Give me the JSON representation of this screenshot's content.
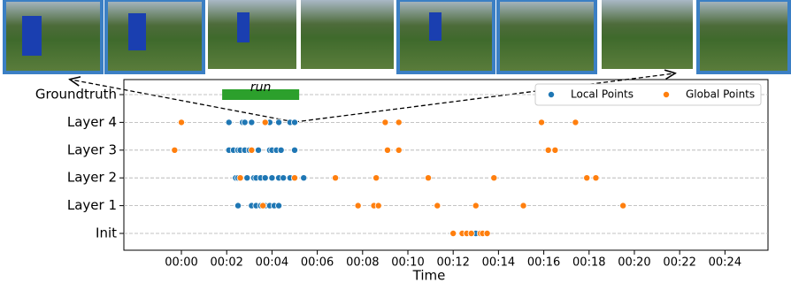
{
  "chart_data": {
    "type": "scatter",
    "xlabel": "Time",
    "categories": [
      "Init",
      "Layer 1",
      "Layer 2",
      "Layer 3",
      "Layer 4",
      "Groundtruth"
    ],
    "xlim": [
      -2.54,
      25.9
    ],
    "xticks": [
      {
        "value": 0,
        "label": "00:00"
      },
      {
        "value": 2,
        "label": "00:02"
      },
      {
        "value": 4,
        "label": "00:04"
      },
      {
        "value": 6,
        "label": "00:06"
      },
      {
        "value": 8,
        "label": "00:08"
      },
      {
        "value": 10,
        "label": "00:10"
      },
      {
        "value": 12,
        "label": "00:12"
      },
      {
        "value": 14,
        "label": "00:14"
      },
      {
        "value": 16,
        "label": "00:16"
      },
      {
        "value": 18,
        "label": "00:18"
      },
      {
        "value": 20,
        "label": "00:20"
      },
      {
        "value": 22,
        "label": "00:22"
      },
      {
        "value": 24,
        "label": "00:24"
      }
    ],
    "grid": true,
    "legend": "upper right",
    "annotations": [
      {
        "label": "run",
        "row": "Groundtruth",
        "start": 1.8,
        "end": 5.2,
        "color": "#2ca02c"
      }
    ],
    "series": [
      {
        "name": "Local Points",
        "color": "#1f77b4",
        "x": [
          2.1,
          2.7,
          2.8,
          3.1,
          3.9,
          4.3,
          4.8,
          5.0,
          2.1,
          2.3,
          2.5,
          2.6,
          2.8,
          3.0,
          3.4,
          3.9,
          4.0,
          4.2,
          4.4,
          5.0,
          2.4,
          2.5,
          2.9,
          3.2,
          3.3,
          3.5,
          3.7,
          4.0,
          4.3,
          4.5,
          4.8,
          5.4,
          2.5,
          3.1,
          3.3,
          3.5,
          3.7,
          3.9,
          4.1,
          4.3,
          13.0
        ],
        "y": [
          "Layer 4",
          "Layer 4",
          "Layer 4",
          "Layer 4",
          "Layer 4",
          "Layer 4",
          "Layer 4",
          "Layer 4",
          "Layer 3",
          "Layer 3",
          "Layer 3",
          "Layer 3",
          "Layer 3",
          "Layer 3",
          "Layer 3",
          "Layer 3",
          "Layer 3",
          "Layer 3",
          "Layer 3",
          "Layer 3",
          "Layer 2",
          "Layer 2",
          "Layer 2",
          "Layer 2",
          "Layer 2",
          "Layer 2",
          "Layer 2",
          "Layer 2",
          "Layer 2",
          "Layer 2",
          "Layer 2",
          "Layer 2",
          "Layer 1",
          "Layer 1",
          "Layer 1",
          "Layer 1",
          "Layer 1",
          "Layer 1",
          "Layer 1",
          "Layer 1",
          "Init"
        ]
      },
      {
        "name": "Global Points",
        "color": "#ff7f0e",
        "x": [
          0.0,
          3.7,
          9.0,
          9.6,
          15.9,
          17.4,
          -0.3,
          3.1,
          9.1,
          9.6,
          16.2,
          16.5,
          2.6,
          5.0,
          6.8,
          8.6,
          10.9,
          13.8,
          17.9,
          18.3,
          3.6,
          7.8,
          8.5,
          8.7,
          11.3,
          13.0,
          15.1,
          19.5,
          12.0,
          12.4,
          12.6,
          12.8,
          13.2,
          13.3,
          13.5
        ],
        "y": [
          "Layer 4",
          "Layer 4",
          "Layer 4",
          "Layer 4",
          "Layer 4",
          "Layer 4",
          "Layer 3",
          "Layer 3",
          "Layer 3",
          "Layer 3",
          "Layer 3",
          "Layer 3",
          "Layer 2",
          "Layer 2",
          "Layer 2",
          "Layer 2",
          "Layer 2",
          "Layer 2",
          "Layer 2",
          "Layer 2",
          "Layer 1",
          "Layer 1",
          "Layer 1",
          "Layer 1",
          "Layer 1",
          "Layer 1",
          "Layer 1",
          "Layer 1",
          "Init",
          "Init",
          "Init",
          "Init",
          "Init",
          "Init",
          "Init"
        ]
      }
    ]
  }
}
